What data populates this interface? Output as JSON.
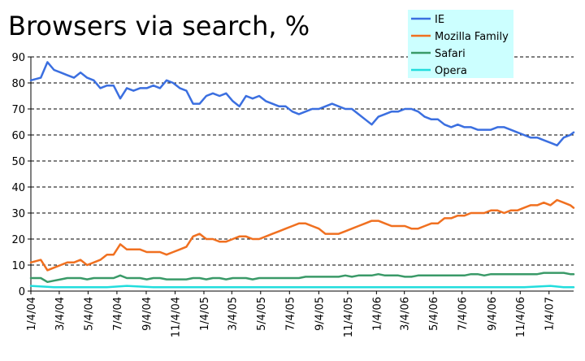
{
  "chart_data": {
    "type": "line",
    "title": "Browsers via search, %",
    "xlabel": "",
    "ylabel": "",
    "ylim": [
      0,
      90
    ],
    "y_ticks": [
      0,
      10,
      20,
      30,
      40,
      50,
      60,
      70,
      80,
      90
    ],
    "x_tick_labels": [
      "1/4/04",
      "3/4/04",
      "5/4/04",
      "7/4/04",
      "9/4/04",
      "11/4/04",
      "1/4/05",
      "3/4/05",
      "5/4/05",
      "7/4/05",
      "9/4/05",
      "11/4/05",
      "1/4/06",
      "3/4/06",
      "5/4/06",
      "7/4/06",
      "9/4/06",
      "11/4/06",
      "1/4/07"
    ],
    "x_range": [
      "2004-01-04",
      "2007-02-25"
    ],
    "grid": "horizontal dashed",
    "legend_position": "top-right",
    "series": [
      {
        "name": "IE",
        "color": "#3b6fe0",
        "x": [
          "2004-01-04",
          "2004-01-25",
          "2004-02-08",
          "2004-02-22",
          "2004-03-07",
          "2004-03-21",
          "2004-04-04",
          "2004-04-18",
          "2004-05-02",
          "2004-05-16",
          "2004-05-30",
          "2004-06-13",
          "2004-06-27",
          "2004-07-11",
          "2004-07-25",
          "2004-08-08",
          "2004-08-22",
          "2004-09-05",
          "2004-09-19",
          "2004-10-03",
          "2004-10-17",
          "2004-10-31",
          "2004-11-14",
          "2004-11-28",
          "2004-12-12",
          "2004-12-26",
          "2005-01-09",
          "2005-01-23",
          "2005-02-06",
          "2005-02-20",
          "2005-03-06",
          "2005-03-20",
          "2005-04-03",
          "2005-04-17",
          "2005-05-01",
          "2005-05-15",
          "2005-05-29",
          "2005-06-12",
          "2005-06-26",
          "2005-07-10",
          "2005-07-24",
          "2005-08-07",
          "2005-08-21",
          "2005-09-04",
          "2005-09-18",
          "2005-10-02",
          "2005-10-16",
          "2005-10-30",
          "2005-11-13",
          "2005-11-27",
          "2005-12-11",
          "2005-12-25",
          "2006-01-08",
          "2006-01-22",
          "2006-02-05",
          "2006-02-19",
          "2006-03-05",
          "2006-03-19",
          "2006-04-02",
          "2006-04-16",
          "2006-04-30",
          "2006-05-14",
          "2006-05-28",
          "2006-06-11",
          "2006-06-25",
          "2006-07-09",
          "2006-07-23",
          "2006-08-06",
          "2006-08-20",
          "2006-09-03",
          "2006-09-17",
          "2006-10-01",
          "2006-10-15",
          "2006-10-29",
          "2006-11-12",
          "2006-11-26",
          "2006-12-10",
          "2006-12-24",
          "2007-01-07",
          "2007-01-21",
          "2007-02-04",
          "2007-02-18",
          "2007-02-25"
        ],
        "values": [
          81,
          82,
          88,
          85,
          84,
          83,
          82,
          84,
          82,
          81,
          78,
          79,
          79,
          74,
          78,
          77,
          78,
          78,
          79,
          78,
          81,
          80,
          78,
          77,
          72,
          72,
          75,
          76,
          75,
          76,
          73,
          71,
          75,
          74,
          75,
          73,
          72,
          71,
          71,
          69,
          68,
          69,
          70,
          70,
          71,
          72,
          71,
          70,
          70,
          68,
          66,
          64,
          67,
          68,
          69,
          69,
          70,
          70,
          69,
          67,
          66,
          66,
          64,
          63,
          64,
          63,
          63,
          62,
          62,
          62,
          63,
          63,
          62,
          61,
          60,
          59,
          59,
          58,
          57,
          56,
          59,
          60,
          61
        ]
      },
      {
        "name": "Mozilla Family",
        "color": "#f07020",
        "x": [
          "2004-01-04",
          "2004-01-25",
          "2004-02-08",
          "2004-02-22",
          "2004-03-07",
          "2004-03-21",
          "2004-04-04",
          "2004-04-18",
          "2004-05-02",
          "2004-05-16",
          "2004-05-30",
          "2004-06-13",
          "2004-06-27",
          "2004-07-11",
          "2004-07-25",
          "2004-08-08",
          "2004-08-22",
          "2004-09-05",
          "2004-09-19",
          "2004-10-03",
          "2004-10-17",
          "2004-10-31",
          "2004-11-14",
          "2004-11-28",
          "2004-12-12",
          "2004-12-26",
          "2005-01-09",
          "2005-01-23",
          "2005-02-06",
          "2005-02-20",
          "2005-03-06",
          "2005-03-20",
          "2005-04-03",
          "2005-04-17",
          "2005-05-01",
          "2005-05-15",
          "2005-05-29",
          "2005-06-12",
          "2005-06-26",
          "2005-07-10",
          "2005-07-24",
          "2005-08-07",
          "2005-08-21",
          "2005-09-04",
          "2005-09-18",
          "2005-10-02",
          "2005-10-16",
          "2005-10-30",
          "2005-11-13",
          "2005-11-27",
          "2005-12-11",
          "2005-12-25",
          "2006-01-08",
          "2006-01-22",
          "2006-02-05",
          "2006-02-19",
          "2006-03-05",
          "2006-03-19",
          "2006-04-02",
          "2006-04-16",
          "2006-04-30",
          "2006-05-14",
          "2006-05-28",
          "2006-06-11",
          "2006-06-25",
          "2006-07-09",
          "2006-07-23",
          "2006-08-06",
          "2006-08-20",
          "2006-09-03",
          "2006-09-17",
          "2006-10-01",
          "2006-10-15",
          "2006-10-29",
          "2006-11-12",
          "2006-11-26",
          "2006-12-10",
          "2006-12-24",
          "2007-01-07",
          "2007-01-21",
          "2007-02-04",
          "2007-02-18",
          "2007-02-25"
        ],
        "values": [
          11,
          12,
          8,
          9,
          10,
          11,
          11,
          12,
          10,
          11,
          12,
          14,
          14,
          18,
          16,
          16,
          16,
          15,
          15,
          15,
          14,
          15,
          16,
          17,
          21,
          22,
          20,
          20,
          19,
          19,
          20,
          21,
          21,
          20,
          20,
          21,
          22,
          23,
          24,
          25,
          26,
          26,
          25,
          24,
          22,
          22,
          22,
          23,
          24,
          25,
          26,
          27,
          27,
          26,
          25,
          25,
          25,
          24,
          24,
          25,
          26,
          26,
          28,
          28,
          29,
          29,
          30,
          30,
          30,
          31,
          31,
          30,
          31,
          31,
          32,
          33,
          33,
          34,
          33,
          35,
          34,
          33,
          32
        ]
      },
      {
        "name": "Safari",
        "color": "#3a9a68",
        "x": [
          "2004-01-04",
          "2004-01-25",
          "2004-02-08",
          "2004-02-22",
          "2004-03-07",
          "2004-03-21",
          "2004-04-04",
          "2004-04-18",
          "2004-05-02",
          "2004-05-16",
          "2004-05-30",
          "2004-06-13",
          "2004-06-27",
          "2004-07-11",
          "2004-07-25",
          "2004-08-08",
          "2004-08-22",
          "2004-09-05",
          "2004-09-19",
          "2004-10-03",
          "2004-10-17",
          "2004-10-31",
          "2004-11-14",
          "2004-11-28",
          "2004-12-12",
          "2004-12-26",
          "2005-01-09",
          "2005-01-23",
          "2005-02-06",
          "2005-02-20",
          "2005-03-06",
          "2005-03-20",
          "2005-04-03",
          "2005-04-17",
          "2005-05-01",
          "2005-05-15",
          "2005-05-29",
          "2005-06-12",
          "2005-06-26",
          "2005-07-10",
          "2005-07-24",
          "2005-08-07",
          "2005-08-21",
          "2005-09-04",
          "2005-09-18",
          "2005-10-02",
          "2005-10-16",
          "2005-10-30",
          "2005-11-13",
          "2005-11-27",
          "2005-12-11",
          "2005-12-25",
          "2006-01-08",
          "2006-01-22",
          "2006-02-05",
          "2006-02-19",
          "2006-03-05",
          "2006-03-19",
          "2006-04-02",
          "2006-04-16",
          "2006-04-30",
          "2006-05-14",
          "2006-05-28",
          "2006-06-11",
          "2006-06-25",
          "2006-07-09",
          "2006-07-23",
          "2006-08-06",
          "2006-08-20",
          "2006-09-03",
          "2006-09-17",
          "2006-10-01",
          "2006-10-15",
          "2006-10-29",
          "2006-11-12",
          "2006-11-26",
          "2006-12-10",
          "2006-12-24",
          "2007-01-07",
          "2007-01-21",
          "2007-02-04",
          "2007-02-18",
          "2007-02-25"
        ],
        "values": [
          5,
          5,
          3.5,
          4,
          4.5,
          5,
          5,
          5,
          4.5,
          5,
          5,
          5,
          5,
          6,
          5,
          5,
          5,
          4.5,
          5,
          5,
          4.5,
          4.5,
          4.5,
          4.5,
          5,
          5,
          4.5,
          5,
          5,
          4.5,
          5,
          5,
          5,
          4.5,
          5,
          5,
          5,
          5,
          5,
          5,
          5,
          5.5,
          5.5,
          5.5,
          5.5,
          5.5,
          5.5,
          6,
          5.5,
          6,
          6,
          6,
          6.5,
          6,
          6,
          6,
          5.5,
          5.5,
          6,
          6,
          6,
          6,
          6,
          6,
          6,
          6,
          6.5,
          6.5,
          6,
          6.5,
          6.5,
          6.5,
          6.5,
          6.5,
          6.5,
          6.5,
          6.5,
          7,
          7,
          7,
          7,
          6.5,
          6.5
        ]
      },
      {
        "name": "Opera",
        "color": "#22dddd",
        "x": [
          "2004-01-04",
          "2004-02-22",
          "2004-04-18",
          "2004-06-13",
          "2004-07-25",
          "2004-09-19",
          "2004-11-14",
          "2005-01-09",
          "2005-03-06",
          "2005-05-01",
          "2005-06-26",
          "2005-08-21",
          "2005-10-16",
          "2005-12-11",
          "2006-02-05",
          "2006-04-02",
          "2006-05-28",
          "2006-07-23",
          "2006-09-17",
          "2006-11-12",
          "2007-01-07",
          "2007-02-04",
          "2007-02-25"
        ],
        "values": [
          2,
          1.5,
          1.5,
          1.5,
          2,
          1.5,
          1.5,
          1.5,
          1.5,
          1.5,
          1.5,
          1.5,
          1.5,
          1.5,
          1.5,
          1.5,
          1.5,
          1.5,
          1.5,
          1.5,
          2,
          1.5,
          1.5
        ]
      }
    ]
  }
}
